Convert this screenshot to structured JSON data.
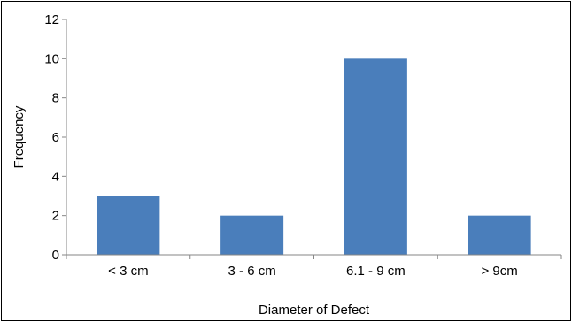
{
  "chart_data": {
    "type": "bar",
    "categories": [
      "< 3 cm",
      "3 - 6 cm",
      "6.1 - 9 cm",
      "> 9cm"
    ],
    "values": [
      3,
      2,
      10,
      2
    ],
    "xlabel": "Diameter of Defect",
    "ylabel": "Frequency",
    "ylim": [
      0,
      12
    ],
    "yticks": [
      0,
      2,
      4,
      6,
      8,
      10,
      12
    ],
    "grid": false,
    "legend": "none",
    "colors": {
      "bar": "#4a7ebb",
      "axis": "#868686",
      "frame": "#000000"
    }
  }
}
